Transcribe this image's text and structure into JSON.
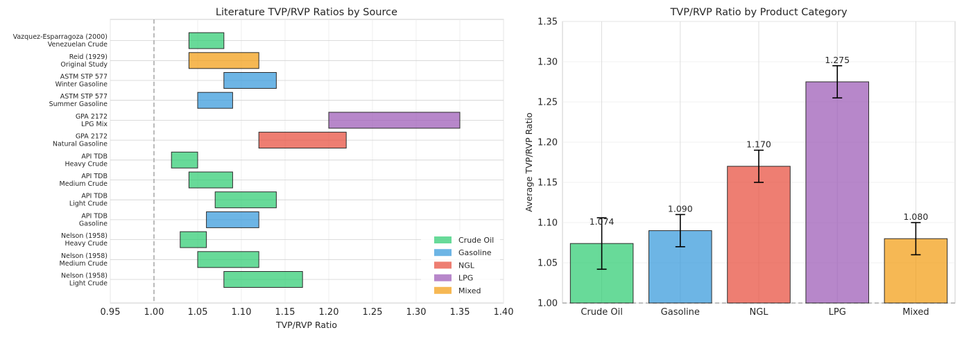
{
  "chart_data": [
    {
      "type": "bar",
      "orientation": "horizontal-range",
      "title": "Literature TVP/RVP Ratios by Source",
      "xlabel": "TVP/RVP Ratio",
      "ylabel": "",
      "xlim": [
        0.95,
        1.4
      ],
      "xticks": [
        "0.95",
        "1.00",
        "1.05",
        "1.10",
        "1.15",
        "1.20",
        "1.25",
        "1.30",
        "1.35",
        "1.40"
      ],
      "reference_line": 1.0,
      "grid": true,
      "legend_position": "lower-right",
      "legend": [
        {
          "name": "Crude Oil",
          "color": "#2ecc71"
        },
        {
          "name": "Gasoline",
          "color": "#3498db"
        },
        {
          "name": "NGL",
          "color": "#e74c3c"
        },
        {
          "name": "LPG",
          "color": "#9b59b6"
        },
        {
          "name": "Mixed",
          "color": "#f39c12"
        }
      ],
      "rows": [
        {
          "label": [
            "Nelson (1958)",
            "Light Crude"
          ],
          "min": 1.08,
          "max": 1.17,
          "category": "Crude Oil"
        },
        {
          "label": [
            "Nelson (1958)",
            "Medium Crude"
          ],
          "min": 1.05,
          "max": 1.12,
          "category": "Crude Oil"
        },
        {
          "label": [
            "Nelson (1958)",
            "Heavy Crude"
          ],
          "min": 1.03,
          "max": 1.06,
          "category": "Crude Oil"
        },
        {
          "label": [
            "API TDB",
            "Gasoline"
          ],
          "min": 1.06,
          "max": 1.12,
          "category": "Gasoline"
        },
        {
          "label": [
            "API TDB",
            "Light Crude"
          ],
          "min": 1.07,
          "max": 1.14,
          "category": "Crude Oil"
        },
        {
          "label": [
            "API TDB",
            "Medium Crude"
          ],
          "min": 1.04,
          "max": 1.09,
          "category": "Crude Oil"
        },
        {
          "label": [
            "API TDB",
            "Heavy Crude"
          ],
          "min": 1.02,
          "max": 1.05,
          "category": "Crude Oil"
        },
        {
          "label": [
            "GPA 2172",
            "Natural Gasoline"
          ],
          "min": 1.12,
          "max": 1.22,
          "category": "NGL"
        },
        {
          "label": [
            "GPA 2172",
            "LPG Mix"
          ],
          "min": 1.2,
          "max": 1.35,
          "category": "LPG"
        },
        {
          "label": [
            "ASTM STP 577",
            "Summer Gasoline"
          ],
          "min": 1.05,
          "max": 1.09,
          "category": "Gasoline"
        },
        {
          "label": [
            "ASTM STP 577",
            "Winter Gasoline"
          ],
          "min": 1.08,
          "max": 1.14,
          "category": "Gasoline"
        },
        {
          "label": [
            "Reid (1929)",
            "Original Study"
          ],
          "min": 1.04,
          "max": 1.12,
          "category": "Mixed"
        },
        {
          "label": [
            "Vazquez-Esparragoza (2000)",
            "Venezuelan Crude"
          ],
          "min": 1.04,
          "max": 1.08,
          "category": "Crude Oil"
        }
      ]
    },
    {
      "type": "bar",
      "title": "TVP/RVP Ratio by Product Category",
      "xlabel": "",
      "ylabel": "Average TVP/RVP Ratio",
      "ylim": [
        1.0,
        1.35
      ],
      "yticks": [
        "1.00",
        "1.05",
        "1.10",
        "1.15",
        "1.20",
        "1.25",
        "1.30",
        "1.35"
      ],
      "reference_line": 1.0,
      "grid": true,
      "categories": [
        "Crude Oil",
        "Gasoline",
        "NGL",
        "LPG",
        "Mixed"
      ],
      "values": [
        1.074,
        1.09,
        1.17,
        1.275,
        1.08
      ],
      "value_labels": [
        "1.074",
        "1.090",
        "1.170",
        "1.275",
        "1.080"
      ],
      "errors": [
        0.032,
        0.02,
        0.02,
        0.02,
        0.02
      ],
      "colors": [
        "#2ecc71",
        "#3498db",
        "#e74c3c",
        "#9b59b6",
        "#f39c12"
      ]
    }
  ]
}
